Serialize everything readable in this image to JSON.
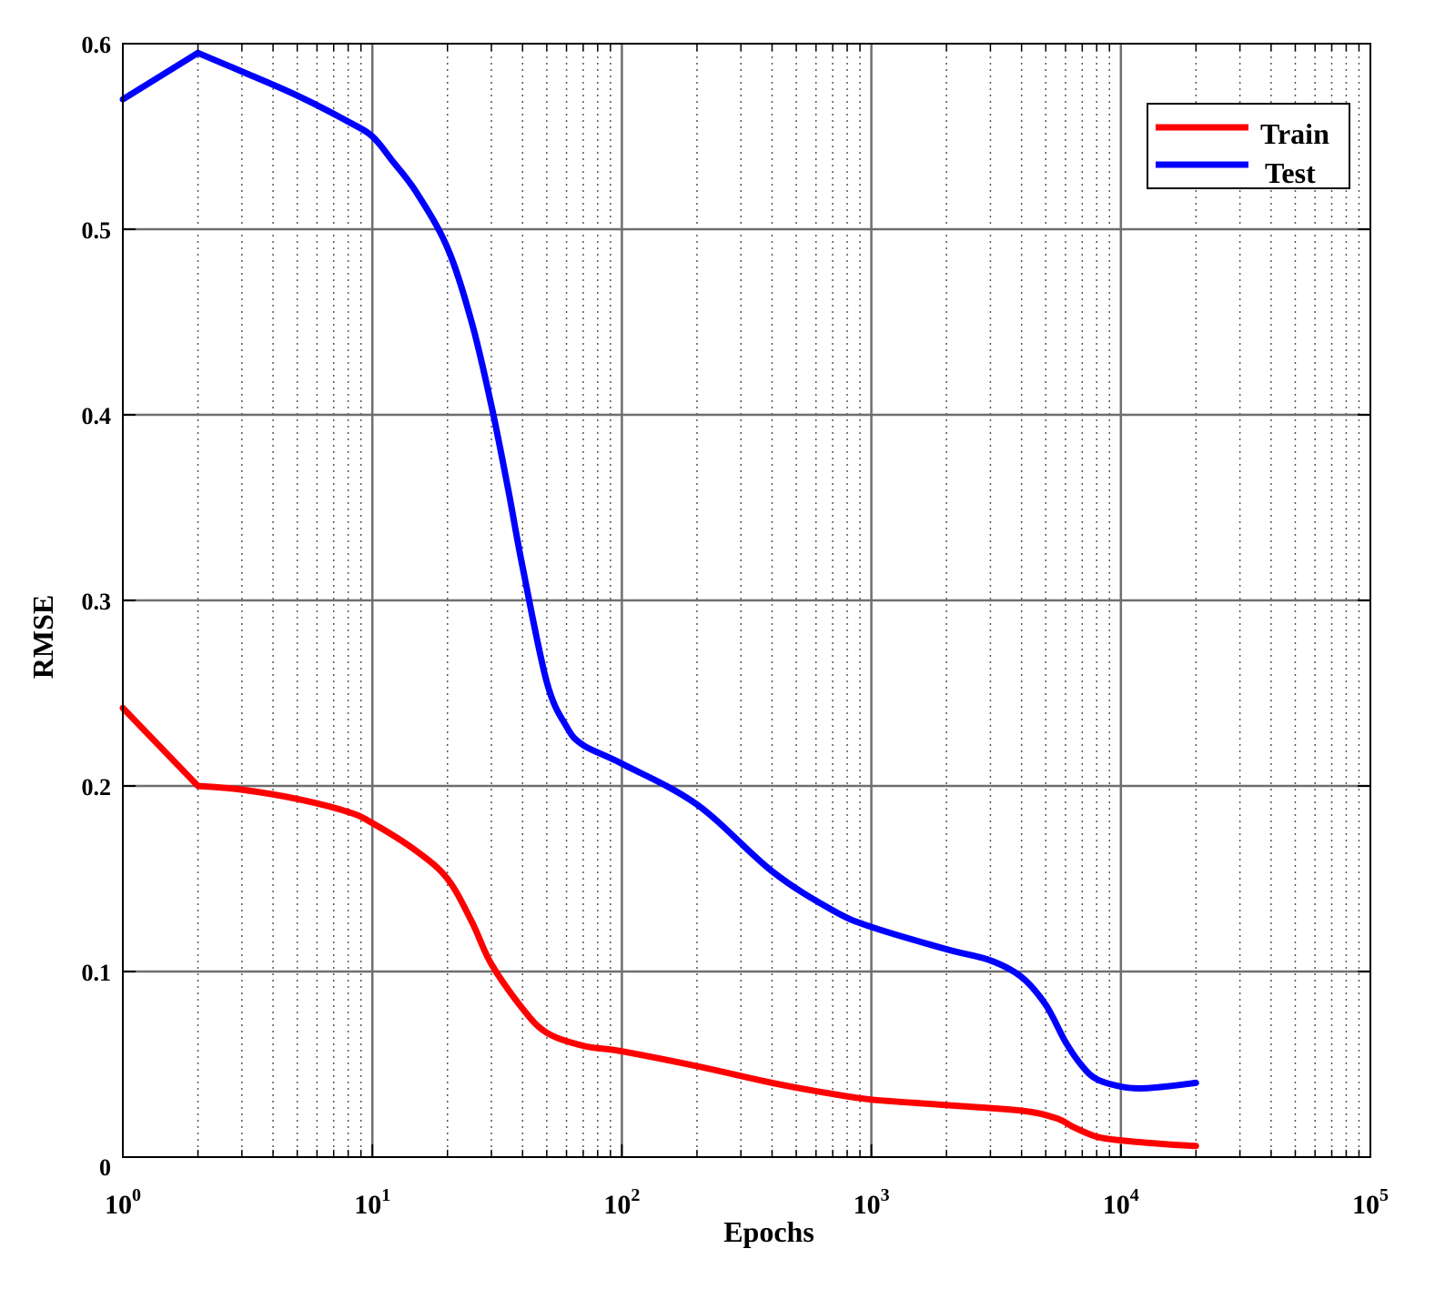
{
  "chart_data": {
    "type": "line",
    "title": "",
    "xlabel": "Epochs",
    "ylabel": "RMSE",
    "xscale": "log",
    "xlim": [
      1,
      100000
    ],
    "ylim": [
      0,
      0.6
    ],
    "grid": true,
    "legend_position": "top-right",
    "x_ticks": [
      {
        "value": 1,
        "base": "10",
        "exp": "0"
      },
      {
        "value": 10,
        "base": "10",
        "exp": "1"
      },
      {
        "value": 100,
        "base": "10",
        "exp": "2"
      },
      {
        "value": 1000,
        "base": "10",
        "exp": "3"
      },
      {
        "value": 10000,
        "base": "10",
        "exp": "4"
      },
      {
        "value": 100000,
        "base": "10",
        "exp": "5"
      }
    ],
    "y_ticks": [
      {
        "value": 0,
        "label": "0"
      },
      {
        "value": 0.1,
        "label": "0.1"
      },
      {
        "value": 0.2,
        "label": "0.2"
      },
      {
        "value": 0.3,
        "label": "0.3"
      },
      {
        "value": 0.4,
        "label": "0.4"
      },
      {
        "value": 0.5,
        "label": "0.5"
      },
      {
        "value": 0.6,
        "label": "0.6"
      }
    ],
    "series": [
      {
        "name": "Train",
        "color": "#ff0000",
        "x": [
          1,
          2,
          3,
          5,
          8,
          10,
          15,
          20,
          25,
          30,
          40,
          50,
          70,
          100,
          200,
          400,
          700,
          1000,
          2000,
          4000,
          5500,
          6500,
          8000,
          10000,
          15000,
          20000
        ],
        "y": [
          0.242,
          0.2,
          0.198,
          0.193,
          0.186,
          0.18,
          0.165,
          0.15,
          0.127,
          0.104,
          0.08,
          0.067,
          0.06,
          0.057,
          0.049,
          0.04,
          0.034,
          0.031,
          0.028,
          0.025,
          0.021,
          0.016,
          0.011,
          0.009,
          0.007,
          0.006
        ]
      },
      {
        "name": "Test",
        "color": "#0000ff",
        "x": [
          1,
          2,
          3,
          5,
          8,
          10,
          12,
          15,
          20,
          25,
          30,
          35,
          40,
          50,
          60,
          70,
          100,
          200,
          400,
          700,
          1000,
          2000,
          3000,
          4000,
          5000,
          6000,
          7000,
          8000,
          10000,
          12000,
          15000,
          20000
        ],
        "y": [
          0.57,
          0.595,
          0.585,
          0.572,
          0.558,
          0.55,
          0.537,
          0.52,
          0.49,
          0.45,
          0.405,
          0.36,
          0.318,
          0.256,
          0.232,
          0.222,
          0.212,
          0.19,
          0.154,
          0.133,
          0.124,
          0.112,
          0.106,
          0.097,
          0.082,
          0.062,
          0.049,
          0.042,
          0.038,
          0.037,
          0.038,
          0.04
        ]
      }
    ]
  }
}
